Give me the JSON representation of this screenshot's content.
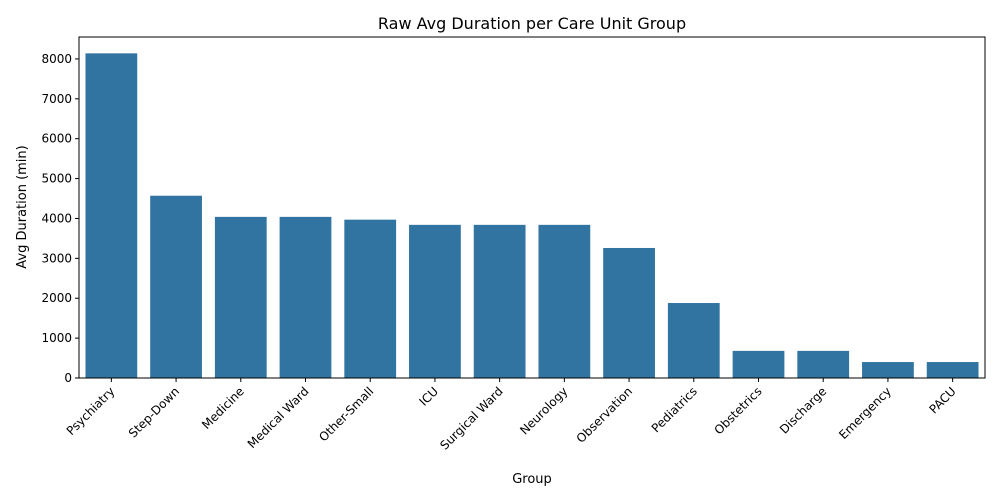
{
  "chart_data": {
    "type": "bar",
    "title": "Raw Avg Duration per Care Unit Group",
    "xlabel": "Group",
    "ylabel": "Avg Duration (min)",
    "categories": [
      "Psychiatry",
      "Step-Down",
      "Medicine",
      "Medical Ward",
      "Other-Small",
      "ICU",
      "Surgical Ward",
      "Neurology",
      "Observation",
      "Pediatrics",
      "Obstetrics",
      "Discharge",
      "Emergency",
      "PACU"
    ],
    "values": [
      8140,
      4570,
      4040,
      4040,
      3970,
      3840,
      3840,
      3840,
      3260,
      1880,
      680,
      680,
      400,
      400
    ],
    "ylim": [
      0,
      8550
    ],
    "yticks": [
      0,
      1000,
      2000,
      3000,
      4000,
      5000,
      6000,
      7000,
      8000
    ],
    "grid": false,
    "bar_color": "#3274a1"
  }
}
